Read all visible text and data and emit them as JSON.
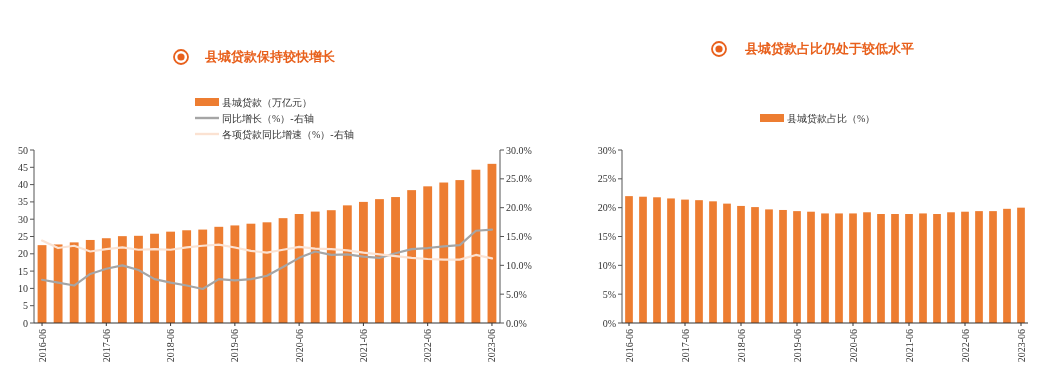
{
  "chart_data": [
    {
      "type": "bar",
      "title": "县城贷款保持较快增长",
      "categories": [
        "2016-06",
        null,
        null,
        null,
        "2017-06",
        null,
        null,
        null,
        "2018-06",
        null,
        null,
        null,
        "2019-06",
        null,
        null,
        null,
        "2020-06",
        null,
        null,
        null,
        "2021-06",
        null,
        null,
        null,
        "2022-06",
        null,
        null,
        null,
        "2023-06"
      ],
      "series": [
        {
          "name": "县城贷款（万亿元）",
          "color": "#ed7d31",
          "values": [
            22.5,
            22.7,
            23.3,
            24.0,
            24.5,
            25.1,
            25.2,
            25.8,
            26.4,
            26.8,
            27.0,
            27.8,
            28.2,
            28.7,
            29.1,
            30.3,
            31.5,
            32.2,
            32.6,
            34.0,
            35.0,
            35.8,
            36.4,
            38.4,
            39.5,
            40.6,
            41.3,
            44.3,
            46.0
          ]
        },
        {
          "name": "同比增长（%）-右轴",
          "type": "line",
          "axis": "y2",
          "color": "#a5a5a5",
          "values": [
            7.5,
            7.0,
            6.5,
            8.5,
            9.4,
            10.0,
            9.2,
            7.6,
            7.0,
            6.5,
            5.9,
            7.6,
            7.4,
            7.6,
            8.2,
            9.7,
            11.3,
            12.4,
            11.8,
            11.9,
            11.5,
            11.3,
            12.1,
            12.8,
            13.0,
            13.3,
            13.5,
            16.0,
            16.2
          ]
        },
        {
          "name": "各项贷款同比增速（%）-右轴",
          "type": "line",
          "axis": "y2",
          "color": "#fbe2d2",
          "values": [
            14.3,
            13.0,
            13.4,
            12.4,
            12.8,
            13.1,
            12.7,
            12.8,
            12.7,
            13.1,
            13.4,
            13.6,
            13.1,
            12.5,
            12.2,
            12.7,
            13.2,
            12.9,
            12.8,
            12.6,
            12.2,
            11.9,
            11.6,
            11.3,
            11.1,
            11.0,
            11.0,
            11.8,
            11.2
          ]
        }
      ],
      "ylim": [
        0,
        50
      ],
      "yticks": [
        0,
        5,
        10,
        15,
        20,
        25,
        30,
        35,
        40,
        45,
        50
      ],
      "y2lim": [
        0,
        30
      ],
      "y2ticks": [
        {
          "value": 0,
          "label": "0.0%"
        },
        {
          "value": 5,
          "label": "5.0%"
        },
        {
          "value": 10,
          "label": "10.0%"
        },
        {
          "value": 15,
          "label": "15.0%"
        },
        {
          "value": 20,
          "label": "20.0%"
        },
        {
          "value": 25,
          "label": "25.0%"
        },
        {
          "value": 30,
          "label": "30.0%"
        }
      ],
      "legend": "top"
    },
    {
      "type": "bar",
      "title": "县城贷款占比仍处于较低水平",
      "categories": [
        "2016-06",
        null,
        null,
        null,
        "2017-06",
        null,
        null,
        null,
        "2018-06",
        null,
        null,
        null,
        "2019-06",
        null,
        null,
        null,
        "2020-06",
        null,
        null,
        null,
        "2021-06",
        null,
        null,
        null,
        "2022-06",
        null,
        null,
        null,
        "2023-06"
      ],
      "series": [
        {
          "name": "县城贷款占比（%）",
          "color": "#ed7d31",
          "values": [
            22.0,
            21.9,
            21.8,
            21.6,
            21.4,
            21.3,
            21.1,
            20.7,
            20.3,
            20.1,
            19.7,
            19.6,
            19.4,
            19.3,
            19.0,
            19.0,
            19.0,
            19.2,
            18.9,
            18.9,
            18.9,
            19.0,
            18.9,
            19.2,
            19.3,
            19.4,
            19.4,
            19.8,
            20.0
          ]
        }
      ],
      "ylim": [
        0,
        30
      ],
      "yticks": [
        {
          "value": 0,
          "label": "0%"
        },
        {
          "value": 5,
          "label": "5%"
        },
        {
          "value": 10,
          "label": "10%"
        },
        {
          "value": 15,
          "label": "15%"
        },
        {
          "value": 20,
          "label": "20%"
        },
        {
          "value": 25,
          "label": "25%"
        },
        {
          "value": 30,
          "label": "30%"
        }
      ],
      "legend": "top"
    }
  ]
}
